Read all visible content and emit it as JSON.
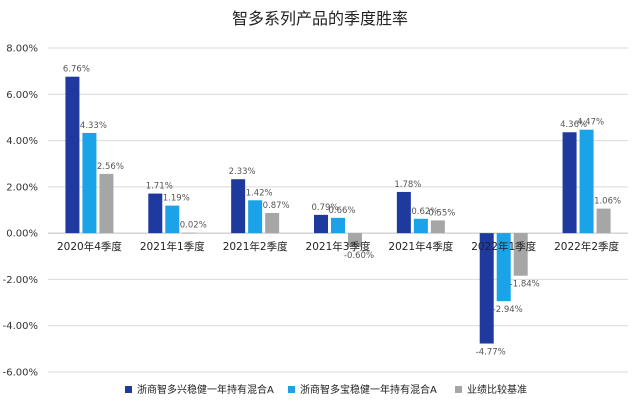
{
  "chart_data": {
    "type": "bar",
    "title": "智多系列产品的季度胜率",
    "categories": [
      "2020年4季度",
      "2021年1季度",
      "2021年2季度",
      "2021年3季度",
      "2021年4季度",
      "2022年1季度",
      "2022年2季度"
    ],
    "series": [
      {
        "name": "浙商智多兴稳健一年持有混合A",
        "color": "#1f3a9e",
        "values": [
          6.76,
          1.71,
          2.33,
          0.79,
          1.78,
          -4.77,
          4.36
        ],
        "labels": [
          "6.76%",
          "1.71%",
          "2.33%",
          "0.79%",
          "1.78%",
          "-4.77%",
          "4.36%"
        ]
      },
      {
        "name": "浙商智多宝稳健一年持有混合A",
        "color": "#1aa3e8",
        "values": [
          4.33,
          1.19,
          1.42,
          0.66,
          0.62,
          -2.94,
          4.47
        ],
        "labels": [
          "4.33%",
          "1.19%",
          "1.42%",
          "0.66%",
          "0.62%",
          "-2.94%",
          "4.47%"
        ]
      },
      {
        "name": "业绩比较基准",
        "color": "#a6a6a6",
        "values": [
          2.56,
          0.02,
          0.87,
          -0.6,
          0.55,
          -1.84,
          1.06
        ],
        "labels": [
          "2.56%",
          "0.02%",
          "0.87%",
          "-0.60%",
          "0.55%",
          "-1.84%",
          "1.06%"
        ]
      }
    ],
    "ylim": [
      -6,
      8
    ],
    "yticks": [
      8,
      6,
      4,
      2,
      0,
      -2,
      -4,
      -6
    ],
    "ytick_labels": [
      "8.00%",
      "6.00%",
      "4.00%",
      "2.00%",
      "0.00%",
      "-2.00%",
      "-4.00%",
      "-6.00%"
    ],
    "grid": true,
    "legend_position": "bottom"
  }
}
